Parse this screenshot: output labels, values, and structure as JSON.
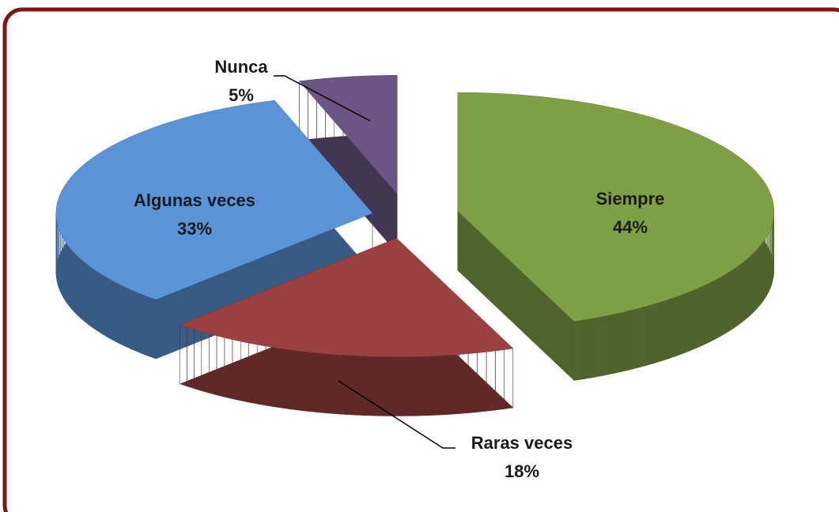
{
  "chart_data": {
    "type": "pie",
    "categories": [
      "Siempre",
      "Raras veces",
      "Algunas veces",
      "Nunca"
    ],
    "values": [
      44,
      18,
      33,
      5
    ],
    "value_labels": [
      "44%",
      "18%",
      "33%",
      "5%"
    ],
    "colors": [
      "#7f9f45",
      "#9c4141",
      "#5b93d8",
      "#6b5585"
    ]
  }
}
